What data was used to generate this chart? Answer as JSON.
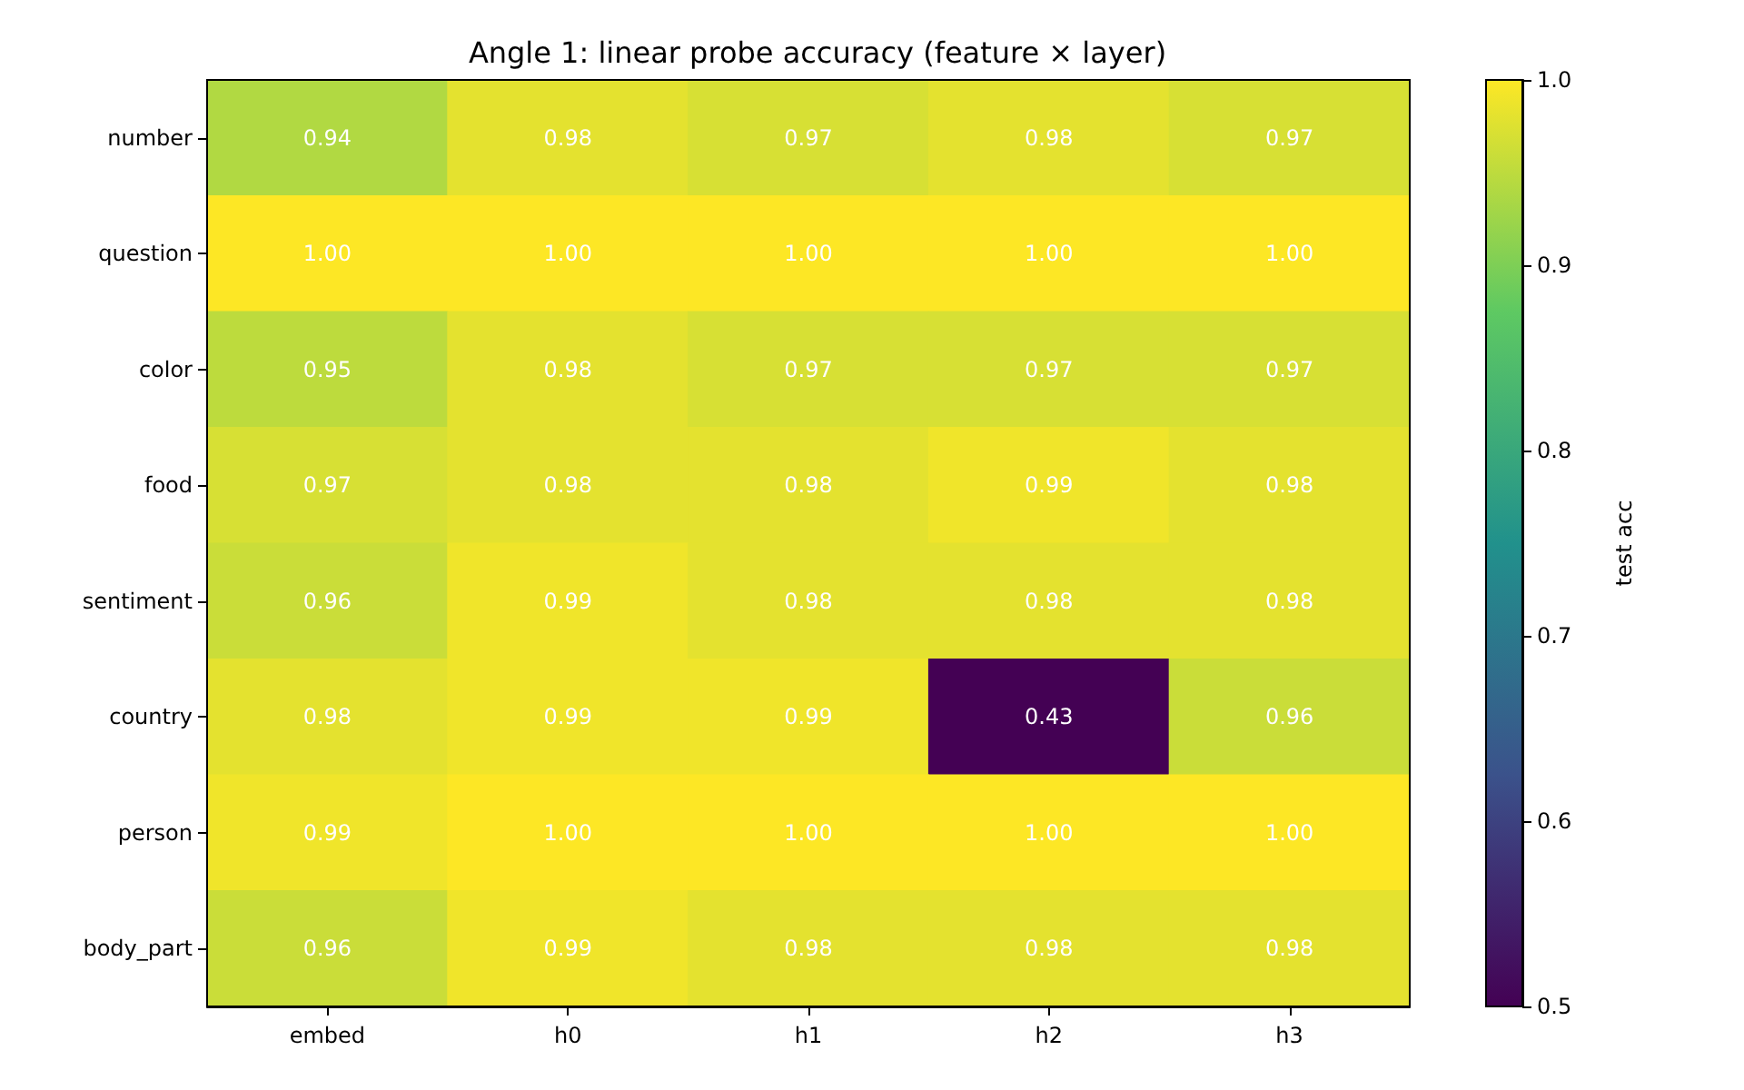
{
  "chart_data": {
    "type": "heatmap",
    "title": "Angle 1: linear probe accuracy (feature × layer)",
    "categories": [
      "embed",
      "h0",
      "h1",
      "h2",
      "h3"
    ],
    "y_categories": [
      "number",
      "question",
      "color",
      "food",
      "sentiment",
      "country",
      "person",
      "body_part"
    ],
    "cells": [
      [
        0.94,
        0.98,
        0.97,
        0.98,
        0.97
      ],
      [
        1.0,
        1.0,
        1.0,
        1.0,
        1.0
      ],
      [
        0.95,
        0.98,
        0.97,
        0.97,
        0.97
      ],
      [
        0.97,
        0.98,
        0.98,
        0.99,
        0.98
      ],
      [
        0.96,
        0.99,
        0.98,
        0.98,
        0.98
      ],
      [
        0.98,
        0.99,
        0.99,
        0.43,
        0.96
      ],
      [
        0.99,
        1.0,
        1.0,
        1.0,
        1.0
      ],
      [
        0.96,
        0.99,
        0.98,
        0.98,
        0.98
      ]
    ],
    "cell_labels": [
      [
        "0.94",
        "0.98",
        "0.97",
        "0.98",
        "0.97"
      ],
      [
        "1.00",
        "1.00",
        "1.00",
        "1.00",
        "1.00"
      ],
      [
        "0.95",
        "0.98",
        "0.97",
        "0.97",
        "0.97"
      ],
      [
        "0.97",
        "0.98",
        "0.98",
        "0.99",
        "0.98"
      ],
      [
        "0.96",
        "0.99",
        "0.98",
        "0.98",
        "0.98"
      ],
      [
        "0.98",
        "0.99",
        "0.99",
        "0.43",
        "0.96"
      ],
      [
        "0.99",
        "1.00",
        "1.00",
        "1.00",
        "1.00"
      ],
      [
        "0.96",
        "0.99",
        "0.98",
        "0.98",
        "0.98"
      ]
    ],
    "clabel": "test acc",
    "clim": [
      0.5,
      1.0
    ],
    "cticks": [
      0.5,
      0.6,
      0.7,
      0.8,
      0.9,
      {
        "value": 1,
        "label": "1.0"
      }
    ]
  }
}
